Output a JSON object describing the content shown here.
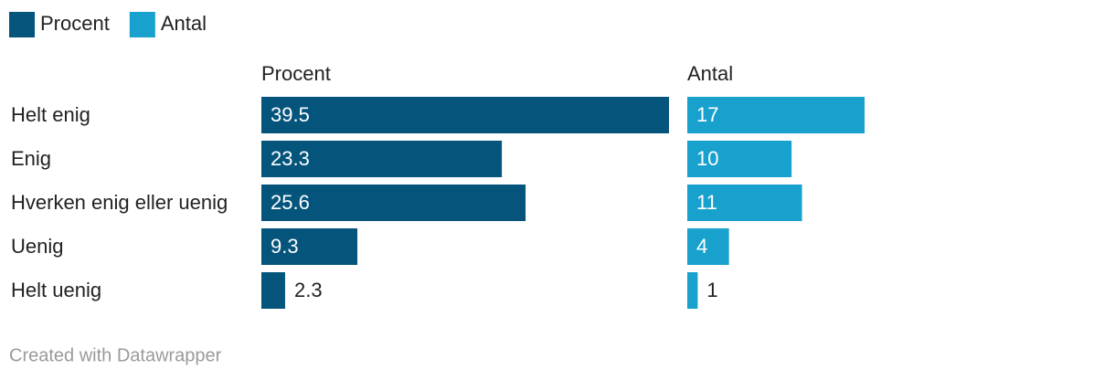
{
  "chart_data": {
    "type": "split-bar",
    "categories": [
      "Helt enig",
      "Enig",
      "Hverken enig eller uenig",
      "Uenig",
      "Helt uenig"
    ],
    "series": [
      {
        "name": "Procent",
        "color": "#04547c",
        "values": [
          39.5,
          23.3,
          25.6,
          9.3,
          2.3
        ],
        "xlim": [
          0,
          39.5
        ]
      },
      {
        "name": "Antal",
        "color": "#18a1cd",
        "values": [
          17,
          10,
          11,
          4,
          1
        ],
        "xlim": [
          0,
          17
        ]
      }
    ],
    "legend": "top-left",
    "credit": "Created with Datawrapper"
  }
}
